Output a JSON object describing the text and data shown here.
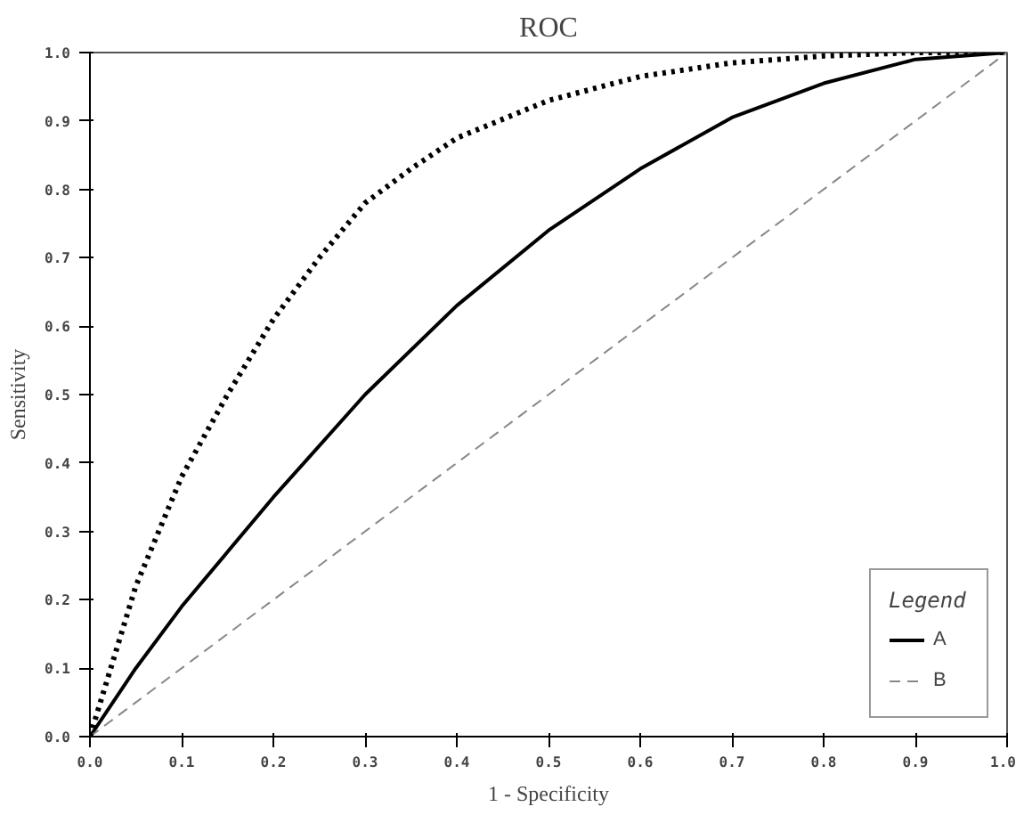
{
  "chart_data": {
    "type": "line",
    "title": "ROC",
    "xlabel": "1 - Specificity",
    "ylabel": "Sensitivity",
    "legend_title": "Legend",
    "legend": "bottom right",
    "grid": false,
    "xlim": [
      0,
      1
    ],
    "ylim": [
      0,
      1
    ],
    "xticks": [
      {
        "value": 0,
        "label": "0.0"
      },
      0.1,
      0.2,
      0.3,
      0.4,
      0.5,
      0.6,
      0.7,
      0.8,
      0.9,
      {
        "value": 1,
        "label": "1.0"
      }
    ],
    "yticks": [
      {
        "value": 0,
        "label": "0.0"
      },
      0.1,
      0.2,
      0.3,
      0.4,
      0.5,
      0.6,
      0.7,
      0.8,
      0.9,
      {
        "value": 1,
        "label": "1.0"
      }
    ],
    "series": [
      {
        "name": "A",
        "color": "#000000",
        "line_style": "solid",
        "x": [
          0,
          0.05,
          0.1,
          0.2,
          0.3,
          0.4,
          0.5,
          0.6,
          0.7,
          0.8,
          0.9,
          1.0
        ],
        "values": [
          0,
          0.1,
          0.19,
          0.35,
          0.5,
          0.63,
          0.74,
          0.83,
          0.905,
          0.955,
          0.99,
          1.0
        ]
      },
      {
        "name": "B",
        "color": "#888888",
        "line_style": "dashed",
        "x": [
          0,
          1
        ],
        "values": [
          0,
          1
        ]
      },
      {
        "color": "#000000",
        "line_style": "dotted",
        "x": [
          0,
          0.05,
          0.1,
          0.15,
          0.2,
          0.25,
          0.3,
          0.35,
          0.4,
          0.5,
          0.6,
          0.7,
          0.8,
          0.9,
          1.0
        ],
        "values": [
          0,
          0.22,
          0.38,
          0.5,
          0.61,
          0.7,
          0.78,
          0.83,
          0.875,
          0.93,
          0.965,
          0.985,
          0.995,
          1.0,
          1.0
        ]
      }
    ]
  }
}
